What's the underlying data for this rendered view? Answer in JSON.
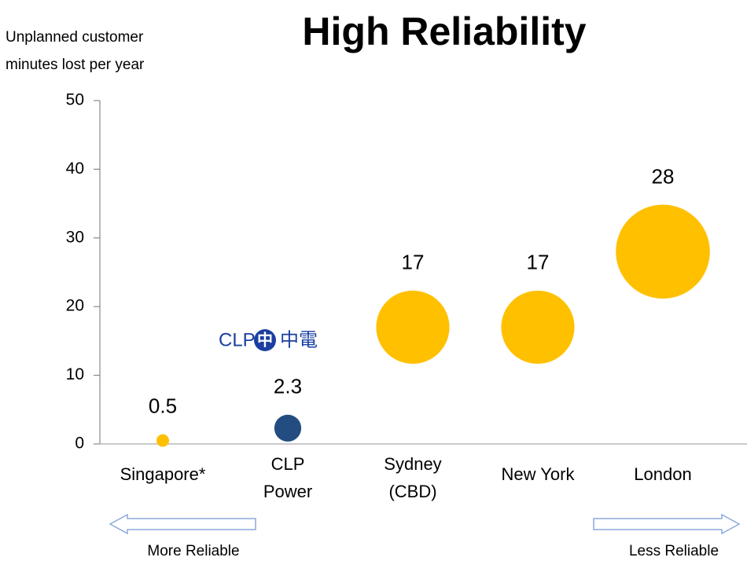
{
  "chart_data": {
    "type": "bubble",
    "title": "High Reliability",
    "y_label": [
      "Unplanned customer",
      "minutes lost per year"
    ],
    "categories": [
      [
        "Singapore*"
      ],
      [
        "CLP",
        "Power"
      ],
      [
        "Sydney",
        "(CBD)"
      ],
      [
        "New York"
      ],
      [
        "London"
      ]
    ],
    "series": [
      {
        "values": [
          0.5,
          2.3,
          17,
          17,
          28
        ],
        "colors": [
          "#FFC000",
          "#234D80",
          "#FFC000",
          "#FFC000",
          "#FFC000"
        ]
      }
    ],
    "ylim": [
      0,
      50
    ],
    "yticks": [
      0,
      10,
      20,
      30,
      40,
      50
    ],
    "logo": {
      "mark": "中",
      "text": "CLP",
      "chinese": "中電",
      "color": "#1B3FA0"
    },
    "annotations": {
      "left": "More Reliable",
      "right": "Less Reliable"
    }
  }
}
